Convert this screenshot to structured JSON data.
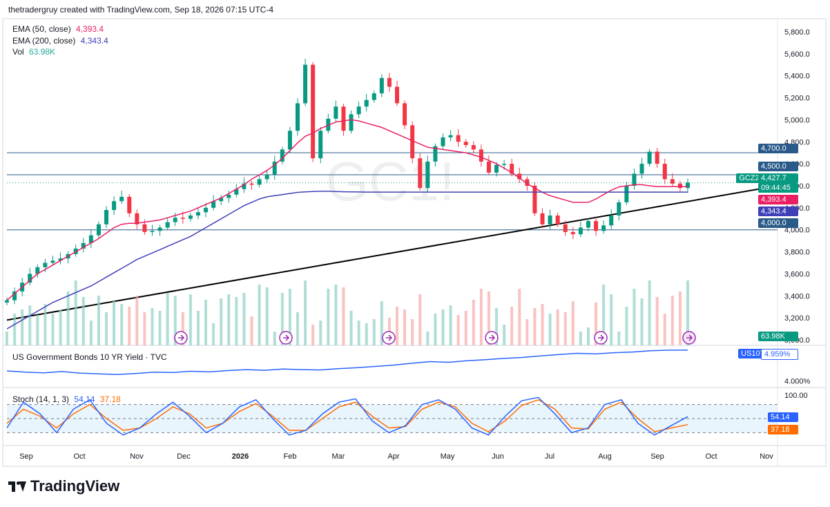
{
  "header": {
    "attribution": "thetradergruy created with TradingView.com, Sep 18, 2026 07:15 UTC-4"
  },
  "watermark": "GC1!",
  "legend": {
    "ema50_label": "EMA (50, close)",
    "ema50_value": "4,393.4",
    "ema200_label": "EMA (200, close)",
    "ema200_value": "4,343.4",
    "vol_label": "Vol",
    "vol_value": "63.98K"
  },
  "bond_pane": {
    "label": "US Government Bonds 10 YR Yield · TVC",
    "symbol": "US10Y",
    "value": "4.959%",
    "tick": "4.000%"
  },
  "stoch_pane": {
    "label": "Stoch (14, 1, 3)",
    "k_value": "54.14",
    "d_value": "37.18",
    "top_tick": "100.00"
  },
  "price_tags": {
    "symbol": "GCZ2026",
    "last": "4,427.7",
    "countdown": "09:44:45",
    "ema50": "4,393.4",
    "ema200": "4,343.4",
    "level_4700": "4,700.0",
    "level_4500": "4,500.0",
    "level_4000": "4,000.0",
    "volume": "63.98K"
  },
  "colors": {
    "up": "#089981",
    "down": "#f23645",
    "ema50": "#e91e63",
    "ema200": "#3f3fb8",
    "level": "#2a5a8a",
    "bond": "#2962ff",
    "stoch_k": "#2962ff",
    "stoch_d": "#ff6d00",
    "event_icon": "#9c27b0"
  },
  "brand": "TradingView",
  "chart_data": [
    {
      "type": "candlestick",
      "title": "GC1!",
      "y_ticks": [
        3000,
        3200,
        3400,
        3600,
        3800,
        4000,
        4200,
        4400,
        4600,
        4800,
        5000,
        5200,
        5400,
        5600,
        5800
      ],
      "y_tick_labels": [
        "3,000.0",
        "3,200.0",
        "3,400.0",
        "3,600.0",
        "3,800.0",
        "4,000.0",
        "4,200.0",
        "4,400.0",
        "4,600.0",
        "4,800.0",
        "5,000.0",
        "5,200.0",
        "5,400.0",
        "5,600.0",
        "5,800.0"
      ],
      "ylim": [
        2950,
        5900
      ],
      "x_labels": [
        "Sep",
        "Oct",
        "Nov",
        "Dec",
        "2026",
        "Feb",
        "Mar",
        "Apr",
        "May",
        "Jun",
        "Jul",
        "Aug",
        "Sep",
        "Oct",
        "Nov"
      ],
      "horizontal_levels": [
        4700,
        4500,
        4000
      ],
      "trendline": {
        "start": 3180,
        "end": 4400
      },
      "series": [
        {
          "name": "price_close",
          "values": [
            3360,
            3440,
            3520,
            3600,
            3660,
            3700,
            3720,
            3740,
            3780,
            3830,
            3880,
            3950,
            4050,
            4180,
            4260,
            4300,
            4150,
            4050,
            3980,
            3990,
            4020,
            4070,
            4110,
            4100,
            4130,
            4160,
            4200,
            4260,
            4290,
            4320,
            4370,
            4420,
            4410,
            4460,
            4500,
            4620,
            4730,
            4900,
            5150,
            5500,
            4650,
            4900,
            5010,
            5120,
            4900,
            5050,
            5120,
            5180,
            5240,
            5380,
            5300,
            5150,
            4950,
            4650,
            4380,
            4620,
            4760,
            4840,
            4860,
            4800,
            4770,
            4730,
            4620,
            4520,
            4590,
            4600,
            4510,
            4460,
            4400,
            4150,
            4050,
            4130,
            4050,
            3980,
            3960,
            4020,
            4080,
            3990,
            4040,
            4130,
            4250,
            4400,
            4510,
            4600,
            4710,
            4600,
            4460,
            4420,
            4380,
            4430
          ]
        },
        {
          "name": "EMA (50, close)",
          "values": [
            3360,
            3420,
            3480,
            3540,
            3600,
            3640,
            3680,
            3720,
            3760,
            3800,
            3840,
            3880,
            3920,
            3970,
            4020,
            4050,
            4060,
            4060,
            4070,
            4080,
            4090,
            4110,
            4130,
            4150,
            4170,
            4200,
            4230,
            4260,
            4290,
            4330,
            4370,
            4410,
            4460,
            4500,
            4540,
            4590,
            4650,
            4720,
            4790,
            4850,
            4880,
            4920,
            4950,
            4980,
            4990,
            5000,
            4990,
            4970,
            4950,
            4930,
            4900,
            4870,
            4840,
            4810,
            4780,
            4750,
            4740,
            4730,
            4720,
            4710,
            4700,
            4680,
            4660,
            4630,
            4600,
            4560,
            4520,
            4470,
            4420,
            4380,
            4340,
            4310,
            4290,
            4270,
            4250,
            4250,
            4250,
            4280,
            4320,
            4360,
            4390,
            4400,
            4410,
            4410,
            4400,
            4393,
            4393,
            4393,
            4393,
            4393
          ]
        },
        {
          "name": "EMA (200, close)",
          "values": [
            3100,
            3140,
            3180,
            3220,
            3260,
            3300,
            3340,
            3370,
            3400,
            3430,
            3460,
            3490,
            3530,
            3570,
            3610,
            3650,
            3690,
            3730,
            3760,
            3790,
            3820,
            3850,
            3880,
            3910,
            3940,
            3980,
            4020,
            4060,
            4100,
            4140,
            4180,
            4220,
            4250,
            4280,
            4300,
            4310,
            4320,
            4330,
            4340,
            4345,
            4348,
            4350,
            4350,
            4348,
            4346,
            4345,
            4344,
            4343,
            4343,
            4343,
            4343,
            4343,
            4343,
            4343,
            4343,
            4343,
            4343,
            4343,
            4343,
            4343,
            4343,
            4343,
            4343,
            4343,
            4343,
            4343,
            4343,
            4343,
            4343,
            4343,
            4343,
            4343,
            4343,
            4343,
            4343,
            4343,
            4343,
            4343,
            4343,
            4343,
            4343,
            4343,
            4343,
            4343,
            4343,
            4343,
            4343,
            4343,
            4343,
            4343
          ]
        }
      ]
    },
    {
      "type": "line",
      "title": "US Government Bonds 10 YR Yield · TVC",
      "y_ticks": [
        4.0
      ],
      "series": [
        {
          "name": "US10Y",
          "values": [
            4.31,
            4.27,
            4.25,
            4.29,
            4.24,
            4.22,
            4.2,
            4.23,
            4.27,
            4.26,
            4.3,
            4.28,
            4.32,
            4.35,
            4.33,
            4.37,
            4.35,
            4.34,
            4.38,
            4.41,
            4.45,
            4.49,
            4.55,
            4.6,
            4.58,
            4.63,
            4.66,
            4.7,
            4.73,
            4.78,
            4.82,
            4.86,
            4.84,
            4.88,
            4.9,
            4.94,
            4.96,
            4.959
          ]
        }
      ]
    },
    {
      "type": "line",
      "title": "Stoch (14, 1, 3)",
      "ylim": [
        0,
        100
      ],
      "y_ticks": [
        100
      ],
      "bands": [
        80,
        50,
        20
      ],
      "series": [
        {
          "name": "%K",
          "values": [
            30,
            85,
            60,
            20,
            70,
            90,
            40,
            15,
            30,
            60,
            85,
            55,
            20,
            40,
            75,
            90,
            50,
            15,
            25,
            60,
            85,
            92,
            45,
            20,
            35,
            80,
            90,
            70,
            30,
            15,
            55,
            88,
            95,
            60,
            20,
            30,
            80,
            90,
            40,
            15,
            35,
            54.14
          ]
        },
        {
          "name": "%D",
          "values": [
            40,
            70,
            55,
            30,
            60,
            80,
            50,
            25,
            30,
            50,
            75,
            60,
            30,
            40,
            65,
            82,
            55,
            25,
            25,
            50,
            75,
            85,
            55,
            30,
            33,
            70,
            85,
            75,
            40,
            22,
            45,
            78,
            90,
            70,
            30,
            28,
            70,
            85,
            50,
            22,
            30,
            37.18
          ]
        }
      ]
    }
  ]
}
